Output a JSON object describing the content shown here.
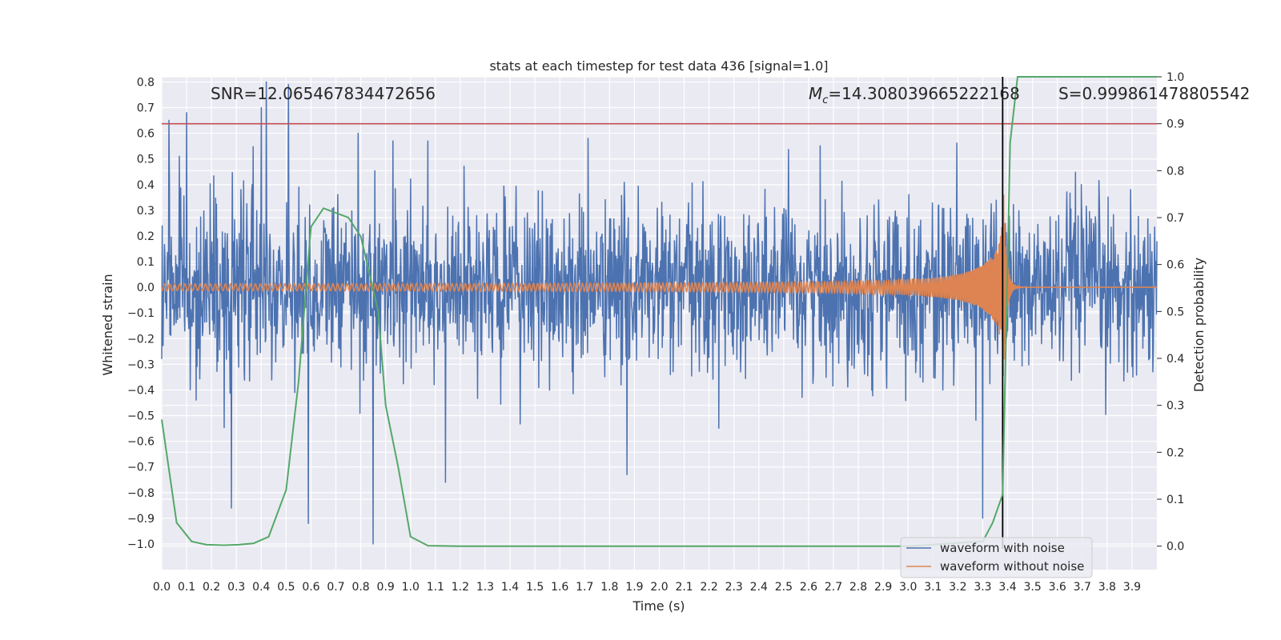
{
  "chart_data": {
    "type": "line",
    "title": "stats at each timestep for test data 436 [signal=1.0]",
    "xlabel": "Time (s)",
    "ylabel": "Whitened strain",
    "y2label": "Detection probability",
    "xlim": [
      0.0,
      4.0
    ],
    "ylim": [
      -1.1,
      0.82
    ],
    "y2lim": [
      -0.05,
      1.0
    ],
    "x_ticks": [
      "0.0",
      "0.1",
      "0.2",
      "0.3",
      "0.4",
      "0.5",
      "0.6",
      "0.7",
      "0.8",
      "0.9",
      "1.0",
      "1.1",
      "1.2",
      "1.3",
      "1.4",
      "1.5",
      "1.6",
      "1.7",
      "1.8",
      "1.9",
      "2.0",
      "2.1",
      "2.2",
      "2.3",
      "2.4",
      "2.5",
      "2.6",
      "2.7",
      "2.8",
      "2.9",
      "3.0",
      "3.1",
      "3.2",
      "3.3",
      "3.4",
      "3.5",
      "3.6",
      "3.7",
      "3.8",
      "3.9"
    ],
    "y_ticks": [
      -1.0,
      -0.9,
      -0.8,
      -0.7,
      -0.6,
      -0.5,
      -0.4,
      -0.3,
      -0.2,
      -0.1,
      0.0,
      0.1,
      0.2,
      0.3,
      0.4,
      0.5,
      0.6,
      0.7,
      0.8
    ],
    "y_tick_labels": [
      "−1.0",
      "−0.9",
      "−0.8",
      "−0.7",
      "−0.6",
      "−0.5",
      "−0.4",
      "−0.3",
      "−0.2",
      "−0.1",
      "0.0",
      "0.1",
      "0.2",
      "0.3",
      "0.4",
      "0.5",
      "0.6",
      "0.7",
      "0.8"
    ],
    "y2_ticks": [
      0.0,
      0.1,
      0.2,
      0.3,
      0.4,
      0.5,
      0.6,
      0.7,
      0.8,
      0.9,
      1.0
    ],
    "y2_tick_labels": [
      "0.0",
      "0.1",
      "0.2",
      "0.3",
      "0.4",
      "0.5",
      "0.6",
      "0.7",
      "0.8",
      "0.9",
      "1.0"
    ],
    "grid": true,
    "legend_position": "lower-right",
    "annotations": {
      "snr": "SNR=12.065467834472656",
      "mc": "=14.308039665222168",
      "mc_symbol": "M",
      "mc_sub": "c",
      "s": "S=0.999861478805542"
    },
    "threshold_line_y2": 0.9,
    "merger_time": 3.38,
    "series": [
      {
        "name": "waveform with noise",
        "color": "#4c72b0",
        "kind": "noise",
        "amplitude_envelope": 0.3,
        "peaks": [
          [
            0.03,
            0.65
          ],
          [
            0.1,
            0.68
          ],
          [
            0.28,
            -0.86
          ],
          [
            0.4,
            0.7
          ],
          [
            0.42,
            0.8
          ],
          [
            0.51,
            0.79
          ],
          [
            0.59,
            -0.92
          ],
          [
            0.79,
            0.6
          ],
          [
            0.85,
            -1.0
          ],
          [
            0.93,
            0.57
          ],
          [
            1.07,
            0.57
          ],
          [
            1.14,
            -0.76
          ],
          [
            1.87,
            -0.73
          ],
          [
            3.3,
            -0.9
          ]
        ]
      },
      {
        "name": "waveform without noise",
        "color": "#dd8452",
        "kind": "chirp",
        "start_amplitude": 0.013,
        "peak_amplitude": 0.5,
        "merger_time": 3.38
      },
      {
        "name": "Detection probability",
        "color": "#55a868",
        "axis": "right",
        "x": [
          0.0,
          0.06,
          0.12,
          0.18,
          0.25,
          0.31,
          0.37,
          0.43,
          0.5,
          0.55,
          0.6,
          0.65,
          0.7,
          0.75,
          0.8,
          0.84,
          0.87,
          0.9,
          0.95,
          1.0,
          1.07,
          1.2,
          2.0,
          3.0,
          3.3,
          3.34,
          3.38,
          3.41,
          3.44,
          4.0
        ],
        "values": [
          0.27,
          0.05,
          0.01,
          0.003,
          0.002,
          0.003,
          0.006,
          0.02,
          0.12,
          0.35,
          0.68,
          0.72,
          0.71,
          0.7,
          0.66,
          0.57,
          0.5,
          0.3,
          0.17,
          0.02,
          0.001,
          0.0,
          0.0,
          0.0,
          0.01,
          0.05,
          0.11,
          0.86,
          1.0,
          1.0
        ]
      }
    ],
    "reference_lines": [
      {
        "kind": "hline",
        "axis": "right",
        "y": 0.9,
        "color": "#c44e52"
      },
      {
        "kind": "vline",
        "x": 3.38,
        "color": "#000000"
      }
    ]
  }
}
